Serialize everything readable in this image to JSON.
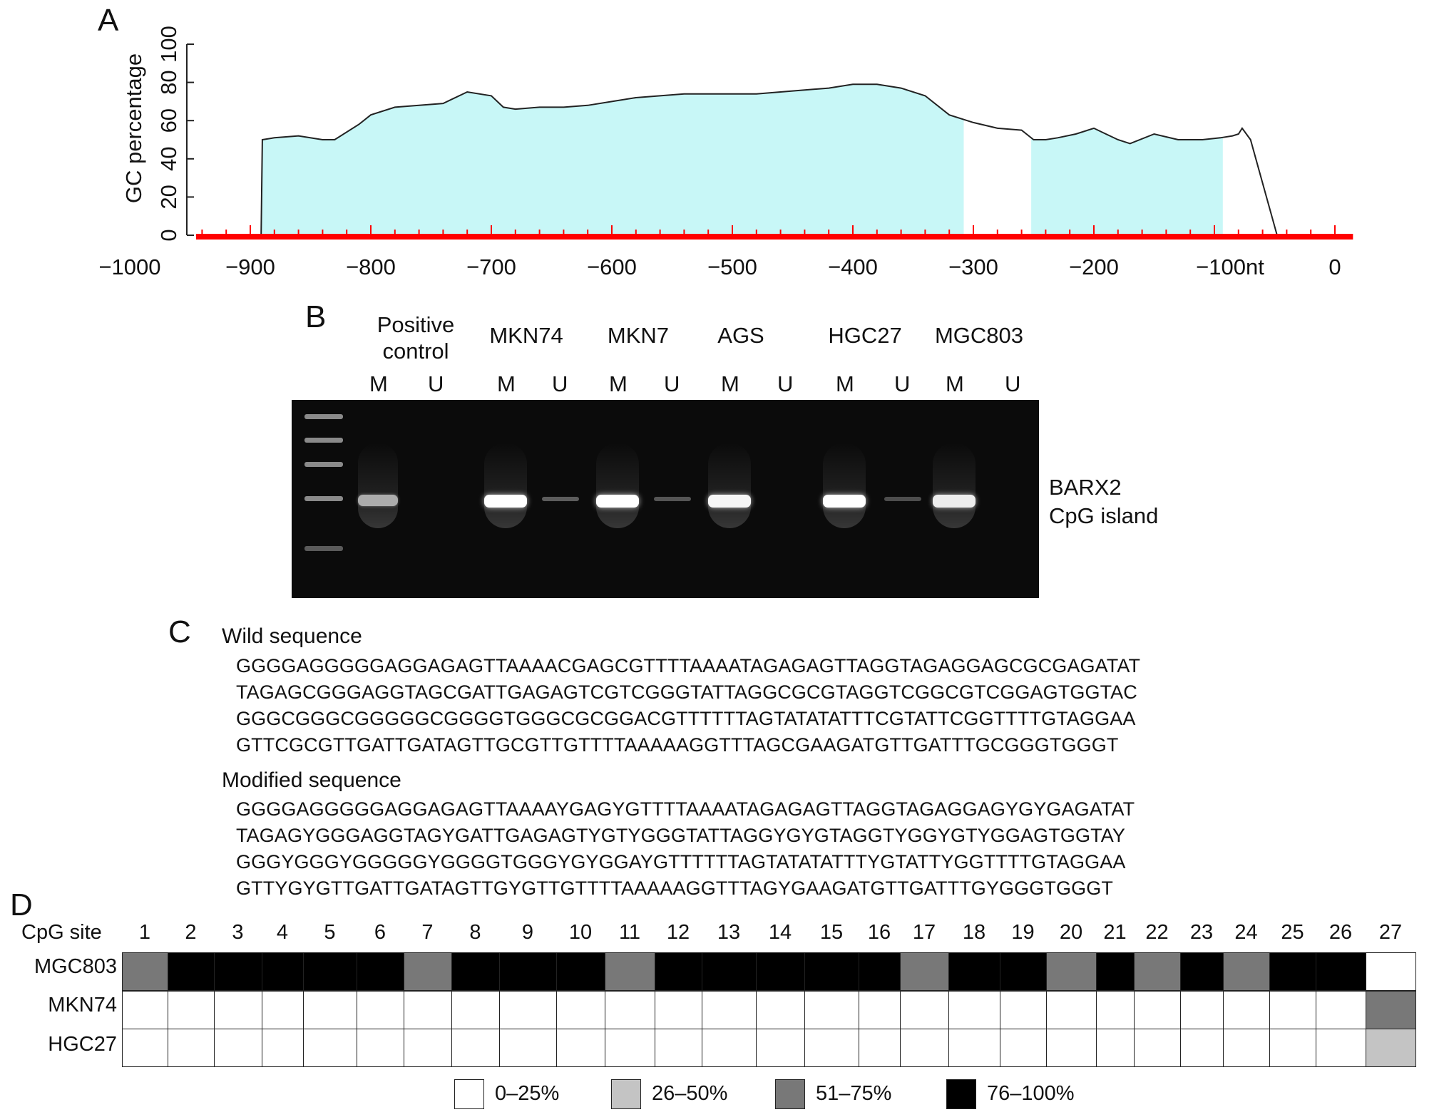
{
  "panels": {
    "a": "A",
    "b": "B",
    "c": "C",
    "d": "D"
  },
  "chart_data": {
    "type": "area",
    "ylabel": "GC percentage",
    "ylim": [
      0,
      100
    ],
    "xlim": [
      -1000,
      0
    ],
    "y_ticks": [
      "0",
      "20",
      "40",
      "60",
      "80",
      "100"
    ],
    "x_ticks": [
      {
        "value": -1000,
        "label": "−1000"
      },
      {
        "value": -900,
        "label": "−900"
      },
      {
        "value": -800,
        "label": "−800"
      },
      {
        "value": -700,
        "label": "−700"
      },
      {
        "value": -600,
        "label": "−600"
      },
      {
        "value": -500,
        "label": "−500"
      },
      {
        "value": -400,
        "label": "−400"
      },
      {
        "value": -300,
        "label": "−300"
      },
      {
        "value": -200,
        "label": "−200"
      },
      {
        "value": -100,
        "label": "−100nt"
      },
      {
        "value": 0,
        "label": "0"
      }
    ],
    "x": [
      -945,
      -891,
      -890,
      -880,
      -860,
      -840,
      -830,
      -810,
      -800,
      -780,
      -760,
      -740,
      -720,
      -700,
      -690,
      -680,
      -660,
      -640,
      -620,
      -600,
      -580,
      -560,
      -540,
      -520,
      -500,
      -480,
      -460,
      -440,
      -420,
      -400,
      -380,
      -360,
      -340,
      -320,
      -300,
      -280,
      -260,
      -250,
      -240,
      -230,
      -215,
      -200,
      -190,
      -180,
      -170,
      -150,
      -130,
      -110,
      -95,
      -85,
      -80,
      -77,
      -70,
      -48
    ],
    "y": [
      0,
      0,
      50,
      51,
      52,
      50,
      50,
      58,
      63,
      67,
      68,
      69,
      75,
      73,
      67,
      66,
      67,
      67,
      68,
      70,
      72,
      73,
      74,
      74,
      74,
      74,
      75,
      76,
      77,
      79,
      79,
      77,
      73,
      63,
      59,
      56,
      55,
      50,
      50,
      51,
      53,
      56,
      53,
      50,
      48,
      53,
      50,
      50,
      51,
      52,
      53,
      56,
      50,
      0
    ],
    "islands": [
      [
        -891,
        -308
      ],
      [
        -252,
        -93
      ]
    ],
    "colors": {
      "island_fill": "#c8f7f7",
      "axis_bar": "#ff0000",
      "line": "#222222"
    }
  },
  "gel": {
    "lanes": [
      {
        "name": "Positive\ncontrol",
        "m": "M",
        "u": "U",
        "m_intensity": 0.55,
        "u_intensity": 0.0
      },
      {
        "name": "MKN74",
        "m": "M",
        "u": "U",
        "m_intensity": 1.0,
        "u_intensity": 0.12
      },
      {
        "name": "MKN7",
        "m": "M",
        "u": "U",
        "m_intensity": 1.0,
        "u_intensity": 0.08
      },
      {
        "name": "AGS",
        "m": "M",
        "u": "U",
        "m_intensity": 0.95,
        "u_intensity": 0.0
      },
      {
        "name": "HGC27",
        "m": "M",
        "u": "U",
        "m_intensity": 1.0,
        "u_intensity": 0.04
      },
      {
        "name": "MGC803",
        "m": "M",
        "u": "U",
        "m_intensity": 0.9,
        "u_intensity": 0.0
      }
    ],
    "gene_label": [
      "BARX2",
      "CpG island"
    ]
  },
  "sequences": {
    "wild_title": "Wild sequence",
    "wild": [
      "GGGGAGGGGGAGGAGAGTTAAAACGAGCGTTTTAAAATAGAGAGTTAGGTAGAGGAGCGCGAGATAT",
      "TAGAGCGGGAGGTAGCGATTGAGAGTCGTCGGGTATTAGGCGCGTAGGTCGGCGTCGGAGTGGTAC",
      "GGGCGGGCGGGGGCGGGGTGGGCGCGGACGTTTTTTAGTATATATTTCGTATTCGGTTTTGTAGGAA",
      "GTTCGCGTTGATTGATAGTTGCGTTGTTTTAAAAAGGTTTAGCGAAGATGTTGATTTGCGGGTGGGT"
    ],
    "modified_title": "Modified sequence",
    "modified": [
      "GGGGAGGGGGAGGAGAGTTAAAAYGAGYGTTTTAAAATAGAGAGTTAGGTAGAGGAGYGYGAGATAT",
      "TAGAGYGGGAGGTAGYGATTGAGAGTYGTYGGGTATTAGGYGYGTAGGTYGGYGTYGGAGTGGTAY",
      "GGGYGGGYGGGGGYGGGGTGGGYGYGGAYGTTTTTTAGTATATATTTYGTATTYGGTTTTGTAGGAA",
      "GTTYGYGTTGATTGATAGTTGYGTTGTTTTAAAAAGGTTTAGYGAAGATGTTGATTTGYGGGTGGGT"
    ]
  },
  "cpg_table": {
    "header_label": "CpG site",
    "sites": [
      "1",
      "2",
      "3",
      "4",
      "5",
      "6",
      "7",
      "8",
      "9",
      "10",
      "11",
      "12",
      "13",
      "14",
      "15",
      "16",
      "17",
      "18",
      "19",
      "20",
      "21",
      "22",
      "23",
      "24",
      "25",
      "26",
      "27"
    ],
    "rows": [
      {
        "label": "MGC803",
        "levels": [
          3,
          4,
          4,
          4,
          4,
          4,
          3,
          4,
          4,
          4,
          3,
          4,
          4,
          4,
          4,
          4,
          3,
          4,
          4,
          3,
          4,
          3,
          4,
          3,
          4,
          4,
          1
        ]
      },
      {
        "label": "MKN74",
        "levels": [
          1,
          1,
          1,
          1,
          1,
          1,
          1,
          1,
          1,
          1,
          1,
          1,
          1,
          1,
          1,
          1,
          1,
          1,
          1,
          1,
          1,
          1,
          1,
          1,
          1,
          1,
          3
        ]
      },
      {
        "label": "HGC27",
        "levels": [
          1,
          1,
          1,
          1,
          1,
          1,
          1,
          1,
          1,
          1,
          1,
          1,
          1,
          1,
          1,
          1,
          1,
          1,
          1,
          1,
          1,
          1,
          1,
          1,
          1,
          1,
          2
        ]
      }
    ],
    "legend": [
      {
        "label": "0–25%",
        "color": "#ffffff"
      },
      {
        "label": "26–50%",
        "color": "#c4c4c4"
      },
      {
        "label": "51–75%",
        "color": "#787878"
      },
      {
        "label": "76–100%",
        "color": "#000000"
      }
    ]
  }
}
